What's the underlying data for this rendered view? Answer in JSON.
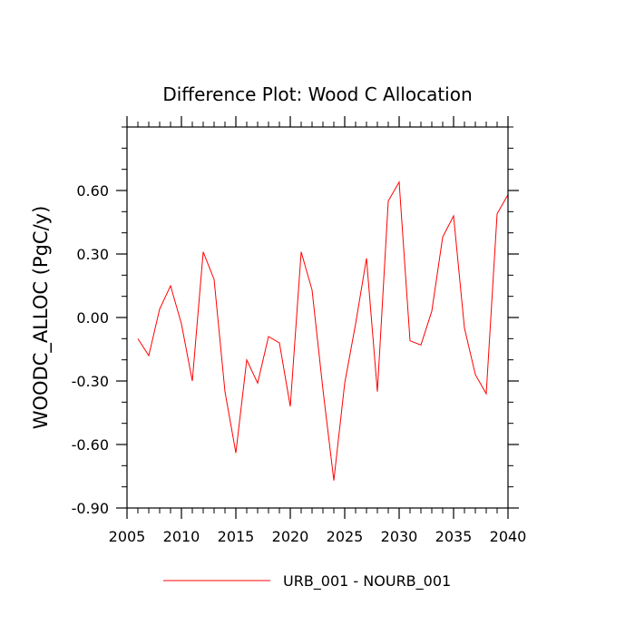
{
  "chart_data": {
    "type": "line",
    "title": "Difference Plot: Wood C Allocation",
    "xlabel": "",
    "ylabel": "WOODC_ALLOC  (PgC/y)",
    "xlim": [
      2005,
      2040
    ],
    "ylim": [
      -0.9,
      0.9
    ],
    "x_ticks": [
      2005,
      2010,
      2015,
      2020,
      2025,
      2030,
      2035,
      2040
    ],
    "y_ticks": [
      -0.9,
      -0.6,
      -0.3,
      0.0,
      0.3,
      0.6
    ],
    "y_tick_labels": [
      "-0.90",
      "-0.60",
      "-0.30",
      "0.00",
      "0.30",
      "0.60"
    ],
    "x_minor_step": 1,
    "y_minor_step": 0.1,
    "grid": false,
    "legend_position": "bottom-center",
    "series": [
      {
        "name": "URB_001 - NOURB_001",
        "color": "#ff0000",
        "x": [
          2006,
          2007,
          2008,
          2009,
          2010,
          2011,
          2012,
          2013,
          2014,
          2015,
          2016,
          2017,
          2018,
          2019,
          2020,
          2021,
          2022,
          2023,
          2024,
          2025,
          2026,
          2027,
          2028,
          2029,
          2030,
          2031,
          2032,
          2033,
          2034,
          2035,
          2036,
          2037,
          2038,
          2039,
          2040
        ],
        "y": [
          -0.1,
          -0.18,
          0.04,
          0.15,
          -0.03,
          -0.3,
          0.31,
          0.18,
          -0.35,
          -0.64,
          -0.2,
          -0.31,
          -0.09,
          -0.12,
          -0.42,
          0.31,
          0.13,
          -0.34,
          -0.77,
          -0.31,
          -0.03,
          0.28,
          -0.35,
          0.55,
          0.64,
          -0.11,
          -0.13,
          0.03,
          0.38,
          0.48,
          -0.05,
          -0.27,
          -0.36,
          0.49,
          0.58
        ]
      }
    ]
  }
}
